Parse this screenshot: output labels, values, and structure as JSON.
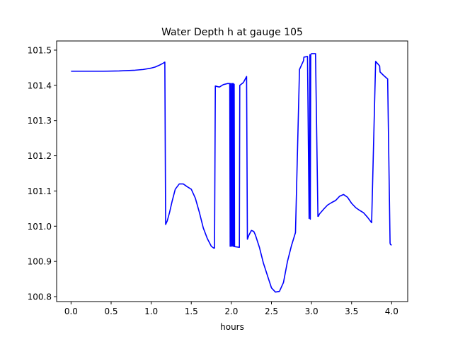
{
  "chart_data": {
    "type": "line",
    "title": "Water Depth h at gauge 105",
    "xlabel": "hours",
    "ylabel": "",
    "xlim": [
      -0.18,
      4.2
    ],
    "ylim": [
      100.786,
      101.526
    ],
    "xticks": [
      0.0,
      0.5,
      1.0,
      1.5,
      2.0,
      2.5,
      3.0,
      3.5,
      4.0
    ],
    "xtick_labels": [
      "0.0",
      "0.5",
      "1.0",
      "1.5",
      "2.0",
      "2.5",
      "3.0",
      "3.5",
      "4.0"
    ],
    "yticks": [
      100.8,
      100.9,
      101.0,
      101.1,
      101.2,
      101.3,
      101.4,
      101.5
    ],
    "ytick_labels": [
      "100.8",
      "100.9",
      "101.0",
      "101.1",
      "101.2",
      "101.3",
      "101.4",
      "101.5"
    ],
    "grid": false,
    "series": [
      {
        "color": "#0000ff",
        "x": [
          0.0,
          0.2,
          0.4,
          0.6,
          0.8,
          0.9,
          1.0,
          1.05,
          1.1,
          1.15,
          1.17,
          1.18,
          1.2,
          1.23,
          1.26,
          1.3,
          1.35,
          1.4,
          1.45,
          1.5,
          1.55,
          1.6,
          1.65,
          1.7,
          1.75,
          1.78,
          1.79,
          1.8,
          1.85,
          1.9,
          1.95,
          1.98,
          1.985,
          1.99,
          2.0,
          2.005,
          2.01,
          2.015,
          2.02,
          2.025,
          2.03,
          2.035,
          2.04,
          2.1,
          2.105,
          2.15,
          2.19,
          2.2,
          2.22,
          2.25,
          2.28,
          2.3,
          2.35,
          2.4,
          2.45,
          2.5,
          2.55,
          2.6,
          2.65,
          2.7,
          2.75,
          2.8,
          2.85,
          2.9,
          2.905,
          2.95,
          2.97,
          2.98,
          2.985,
          2.99,
          3.0,
          3.05,
          3.08,
          3.085,
          3.1,
          3.15,
          3.2,
          3.25,
          3.3,
          3.35,
          3.4,
          3.45,
          3.5,
          3.55,
          3.6,
          3.65,
          3.7,
          3.75,
          3.8,
          3.85,
          3.855,
          3.9,
          3.95,
          3.98,
          3.985,
          4.0
        ],
        "y": [
          101.44,
          101.44,
          101.44,
          101.441,
          101.443,
          101.445,
          101.449,
          101.452,
          101.457,
          101.463,
          101.466,
          101.005,
          101.015,
          101.04,
          101.07,
          101.105,
          101.12,
          101.12,
          101.112,
          101.105,
          101.08,
          101.04,
          100.995,
          100.965,
          100.943,
          100.938,
          100.938,
          101.398,
          101.395,
          101.402,
          101.405,
          101.405,
          100.943,
          101.405,
          100.943,
          101.405,
          100.945,
          101.405,
          100.943,
          101.405,
          100.943,
          101.403,
          100.942,
          100.94,
          101.4,
          101.408,
          101.425,
          100.963,
          100.975,
          100.988,
          100.985,
          100.975,
          100.94,
          100.895,
          100.86,
          100.825,
          100.813,
          100.815,
          100.84,
          100.9,
          100.945,
          100.982,
          101.445,
          101.47,
          101.48,
          101.482,
          101.022,
          101.487,
          101.02,
          101.487,
          101.49,
          101.49,
          101.028,
          101.028,
          101.035,
          101.048,
          101.06,
          101.067,
          101.073,
          101.085,
          101.09,
          101.082,
          101.065,
          101.053,
          101.045,
          101.038,
          101.025,
          101.01,
          101.468,
          101.455,
          101.438,
          101.428,
          101.418,
          100.952,
          100.948,
          100.946
        ]
      }
    ]
  }
}
